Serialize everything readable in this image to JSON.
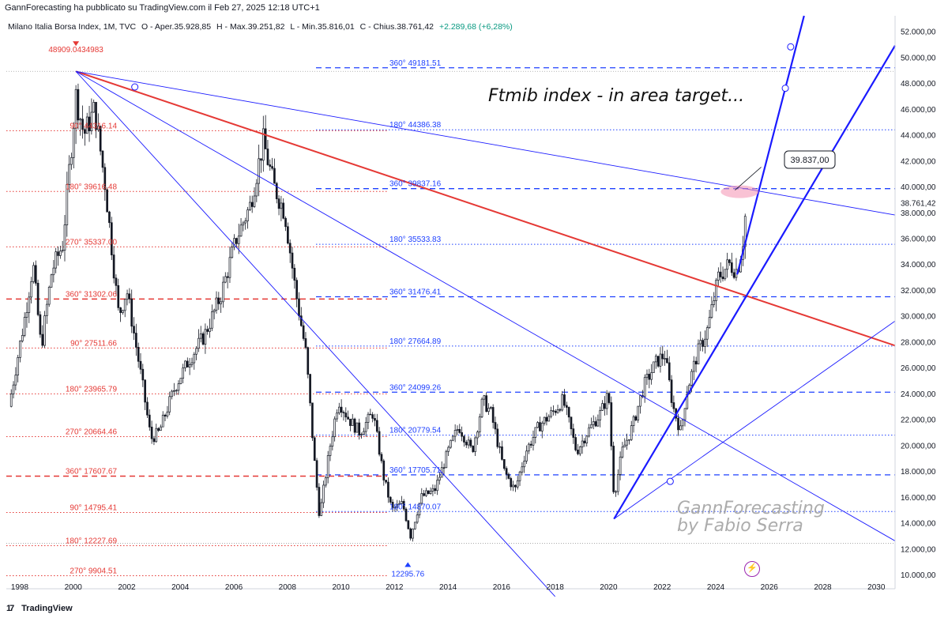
{
  "header": {
    "published": "GannForecasting ha pubblicato su TradingView.com il Feb 27, 2025 12:18 UTC+1",
    "symbol": "Milano Italia Borsa Index, 1M, TVC",
    "open": "O - Aper.35.928,85",
    "high": "H - Max.39.251,82",
    "low": "L - Min.35.816,01",
    "close": "C - Chius.38.761,42",
    "change": "+2.289,68 (+6,28%)"
  },
  "title_annotation": "Ftmib index - in area target...",
  "watermark": [
    "GannForecasting",
    "by Fabio Serra"
  ],
  "footer": {
    "brand": "TradingView"
  },
  "colors": {
    "red_level": "#e53935",
    "blue_level": "#1e40ff",
    "red_trend": "#e53935",
    "blue_trend": "#1a1aff",
    "candle": "#131722",
    "axis_text": "#131722"
  },
  "chart_data": {
    "type": "candlestick",
    "x_axis_ticks": [
      "1998",
      "2000",
      "2002",
      "2004",
      "2006",
      "2008",
      "2010",
      "2012",
      "2014",
      "2016",
      "2018",
      "2020",
      "2022",
      "2024",
      "2026",
      "2028",
      "2030"
    ],
    "x_range": [
      1997.5,
      2030.7
    ],
    "y_axis_ticks": [
      "52.000,00",
      "50.000,00",
      "48.000,00",
      "46.000,00",
      "44.000,00",
      "42.000,00",
      "40.000,00",
      "38.000,00",
      "36.000,00",
      "34.000,00",
      "32.000,00",
      "30.000,00",
      "28.000,00",
      "26.000,00",
      "24.000,00",
      "22.000,00",
      "20.000,00",
      "18.000,00",
      "16.000,00",
      "14.000,00",
      "12.000,00",
      "10.000,00"
    ],
    "y_range": [
      8900,
      53200
    ],
    "last_price_label": "38.761,42",
    "callout_label": "39.837,00",
    "top_marker": {
      "label": "48909.0434983",
      "value": 48909
    },
    "bottom_marker": {
      "label": "12295.76",
      "value": 12296
    },
    "red_levels": [
      {
        "label": "90° 44316.14",
        "value": 44316
      },
      {
        "label": "180° 39616.48",
        "value": 39616
      },
      {
        "label": "270° 35337.00",
        "value": 35337
      },
      {
        "label": "360° 31302.06",
        "value": 31302,
        "dashed": true
      },
      {
        "label": "90° 27511.66",
        "value": 27512
      },
      {
        "label": "180° 23965.79",
        "value": 23966
      },
      {
        "label": "270° 20664.46",
        "value": 20664
      },
      {
        "label": "360° 17607.67",
        "value": 17608,
        "dashed": true
      },
      {
        "label": "90° 14795.41",
        "value": 14795
      },
      {
        "label": "180° 12227.69",
        "value": 12228
      },
      {
        "label": "270° 9904.51",
        "value": 9905
      }
    ],
    "blue_levels": [
      {
        "label": "360° 49181.51",
        "value": 49182,
        "dashed": true
      },
      {
        "label": "180° 44386.38",
        "value": 44386
      },
      {
        "label": "360° 39837.16",
        "value": 39837,
        "dashed": true
      },
      {
        "label": "180° 35533.83",
        "value": 35534
      },
      {
        "label": "360° 31476.41",
        "value": 31476,
        "dashed": true
      },
      {
        "label": "180° 27664.89",
        "value": 27665
      },
      {
        "label": "360° 24099.26",
        "value": 24099,
        "dashed": true
      },
      {
        "label": "180° 20779.54",
        "value": 20780
      },
      {
        "label": "360° 17705.71",
        "value": 17706,
        "dashed": true
      },
      {
        "label": "180° 14870.07",
        "value": 14870
      }
    ],
    "trend_lines": [
      {
        "name": "red-fan",
        "color": "red",
        "points": [
          [
            2000.1,
            48900
          ],
          [
            2030.7,
            27700
          ]
        ]
      },
      {
        "name": "blue-fan-shallow",
        "color": "blue",
        "points": [
          [
            2000.1,
            48900
          ],
          [
            2030.7,
            37800
          ]
        ]
      },
      {
        "name": "blue-fan-mid",
        "color": "blue",
        "points": [
          [
            2000.1,
            48900
          ],
          [
            2030.7,
            12600
          ]
        ]
      },
      {
        "name": "blue-fan-steep",
        "color": "blue",
        "points": [
          [
            2000.1,
            48900
          ],
          [
            2018.0,
            8300
          ]
        ]
      },
      {
        "name": "blue-rise-thin",
        "color": "blue",
        "points": [
          [
            2020.2,
            14300
          ],
          [
            2030.7,
            29600
          ]
        ]
      },
      {
        "name": "blue-rise-bold",
        "color": "blue",
        "bold": true,
        "points": [
          [
            2020.2,
            14300
          ],
          [
            2030.7,
            50900
          ]
        ]
      },
      {
        "name": "blue-rise-steep",
        "color": "blue",
        "bold": true,
        "points": [
          [
            2024.8,
            33200
          ],
          [
            2027.3,
            53200
          ]
        ]
      }
    ],
    "price_path": [
      [
        1997.6,
        23000
      ],
      [
        1998.2,
        30000
      ],
      [
        1998.5,
        34000
      ],
      [
        1998.8,
        27500
      ],
      [
        1999.2,
        33500
      ],
      [
        1999.6,
        35500
      ],
      [
        2000.1,
        47000
      ],
      [
        2000.4,
        44000
      ],
      [
        2000.8,
        46000
      ],
      [
        2001.2,
        40000
      ],
      [
        2001.7,
        30000
      ],
      [
        2002.0,
        32000
      ],
      [
        2002.6,
        24500
      ],
      [
        2002.9,
        20500
      ],
      [
        2003.2,
        21000
      ],
      [
        2003.8,
        24500
      ],
      [
        2004.3,
        26500
      ],
      [
        2004.9,
        28500
      ],
      [
        2005.5,
        31500
      ],
      [
        2006.1,
        36000
      ],
      [
        2006.6,
        38500
      ],
      [
        2007.1,
        43500
      ],
      [
        2007.5,
        40000
      ],
      [
        2007.9,
        38000
      ],
      [
        2008.3,
        32000
      ],
      [
        2008.7,
        27000
      ],
      [
        2009.0,
        19000
      ],
      [
        2009.2,
        14500
      ],
      [
        2009.6,
        20000
      ],
      [
        2009.9,
        23500
      ],
      [
        2010.3,
        22000
      ],
      [
        2010.7,
        21000
      ],
      [
        2011.2,
        22500
      ],
      [
        2011.6,
        17500
      ],
      [
        2011.9,
        15000
      ],
      [
        2012.3,
        15500
      ],
      [
        2012.6,
        13000
      ],
      [
        2013.0,
        16000
      ],
      [
        2013.5,
        16500
      ],
      [
        2014.0,
        19500
      ],
      [
        2014.4,
        21500
      ],
      [
        2014.9,
        19500
      ],
      [
        2015.3,
        23500
      ],
      [
        2015.6,
        22500
      ],
      [
        2016.1,
        18000
      ],
      [
        2016.5,
        16500
      ],
      [
        2016.9,
        19500
      ],
      [
        2017.4,
        21500
      ],
      [
        2017.9,
        22500
      ],
      [
        2018.3,
        23500
      ],
      [
        2018.8,
        19500
      ],
      [
        2019.2,
        21000
      ],
      [
        2019.7,
        22500
      ],
      [
        2020.0,
        24000
      ],
      [
        2020.2,
        16000
      ],
      [
        2020.5,
        19500
      ],
      [
        2020.9,
        21500
      ],
      [
        2021.3,
        24500
      ],
      [
        2021.8,
        26500
      ],
      [
        2022.1,
        27000
      ],
      [
        2022.4,
        23000
      ],
      [
        2022.7,
        21000
      ],
      [
        2022.9,
        24000
      ],
      [
        2023.3,
        27000
      ],
      [
        2023.7,
        29000
      ],
      [
        2024.1,
        33000
      ],
      [
        2024.5,
        34000
      ],
      [
        2024.8,
        33500
      ],
      [
        2025.0,
        35500
      ],
      [
        2025.15,
        38761
      ]
    ]
  }
}
